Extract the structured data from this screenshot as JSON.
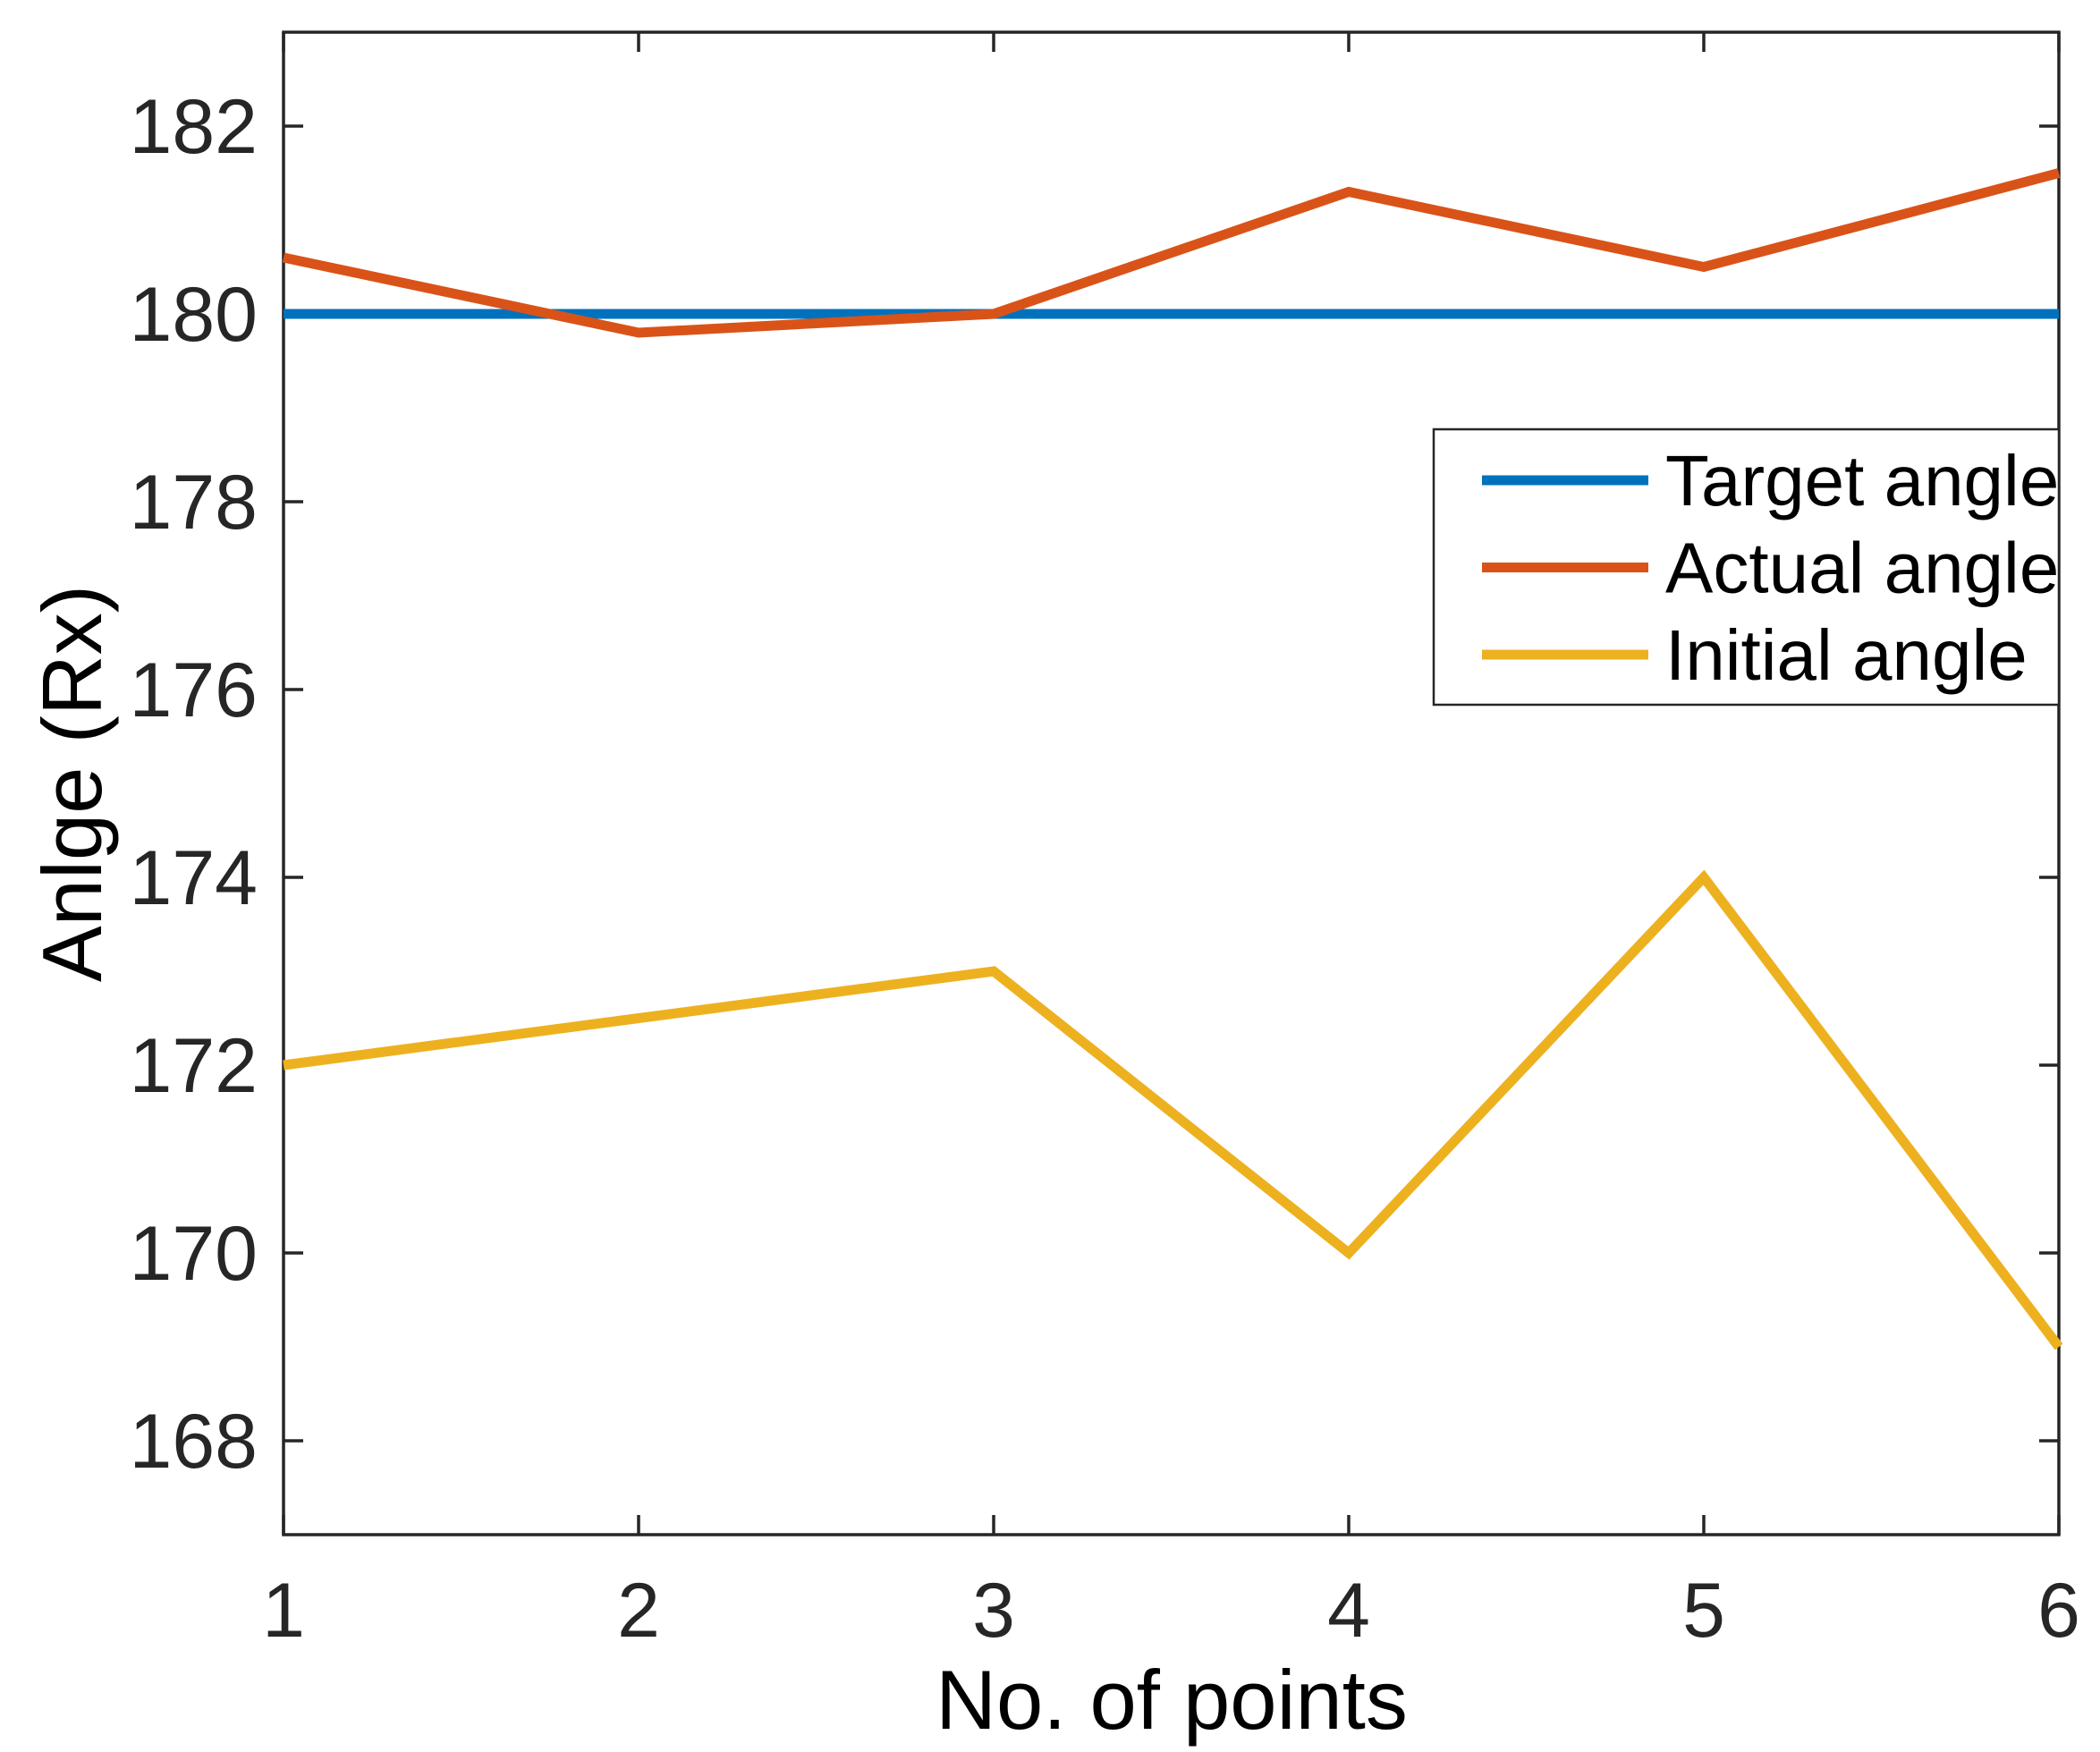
{
  "chart_data": {
    "type": "line",
    "x": [
      1,
      2,
      3,
      4,
      5,
      6
    ],
    "series": [
      {
        "name": "Target angle",
        "color": "#0072BD",
        "values": [
          180.0,
          180.0,
          180.0,
          180.0,
          180.0,
          180.0
        ]
      },
      {
        "name": "Actual angle",
        "color": "#D95319",
        "values": [
          180.6,
          179.8,
          180.0,
          181.3,
          180.5,
          181.5
        ]
      },
      {
        "name": "Initial angle",
        "color": "#EDB120",
        "values": [
          172.0,
          172.5,
          173.0,
          170.0,
          174.0,
          169.0
        ]
      }
    ],
    "title": "",
    "xlabel": "No. of points",
    "ylabel": "Anlge (Rx)",
    "xlim": [
      1,
      6
    ],
    "ylim": [
      167,
      183
    ],
    "xticks": [
      "1",
      "2",
      "3",
      "4",
      "5",
      "6"
    ],
    "yticks": [
      "168",
      "170",
      "172",
      "174",
      "176",
      "178",
      "180",
      "182"
    ],
    "grid": false,
    "legend_position": "upper right",
    "axis_color": "#262626",
    "background_color": "#ffffff"
  }
}
